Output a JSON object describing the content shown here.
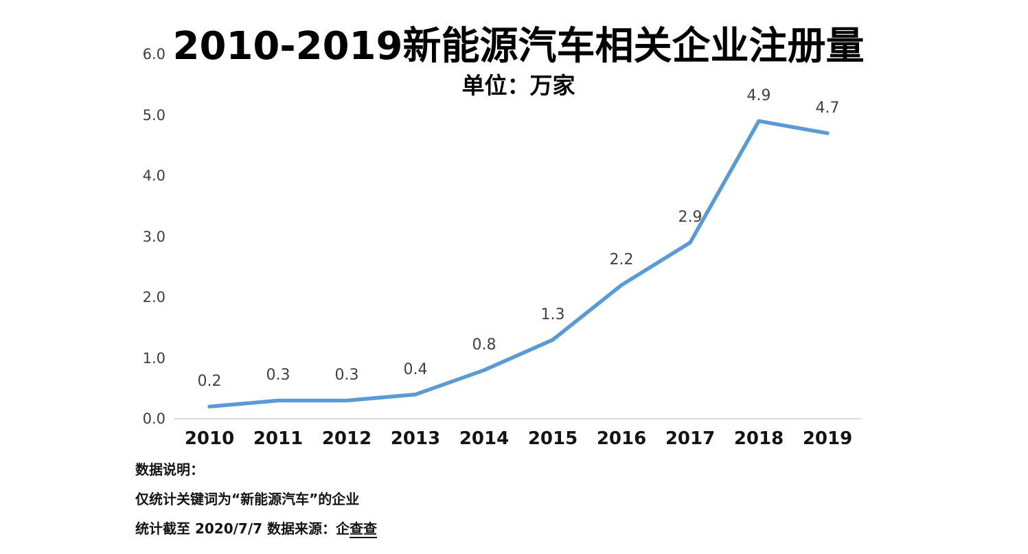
{
  "chart": {
    "title": "2010-2019新能源汽车相关企业注册量",
    "subtitle": "单位：万家",
    "line_color": "#5b9bd5",
    "axis_color": "#d9d9d9",
    "data_label_color": "#404040",
    "background": "#ffffff"
  },
  "chart_data": {
    "type": "line",
    "title": "2010-2019新能源汽车相关企业注册量",
    "subtitle": "单位：万家",
    "unit": "万家",
    "categories": [
      "2010",
      "2011",
      "2012",
      "2013",
      "2014",
      "2015",
      "2016",
      "2017",
      "2018",
      "2019"
    ],
    "values": [
      0.2,
      0.3,
      0.3,
      0.4,
      0.8,
      1.3,
      2.2,
      2.9,
      4.9,
      4.7
    ],
    "labels": [
      "0.2",
      "0.3",
      "0.3",
      "0.4",
      "0.8",
      "1.3",
      "2.2",
      "2.9",
      "4.9",
      "4.7"
    ],
    "y_ticks": [
      "6.0",
      "5.0",
      "4.0",
      "3.0",
      "2.0",
      "1.0",
      "0.0"
    ],
    "ylim": [
      0,
      6
    ],
    "xlabel": "",
    "ylabel": "",
    "grid": false,
    "legend": "none",
    "marker": "none"
  },
  "footer": {
    "line1": "数据说明：",
    "line2": "仅统计关键词为“新能源汽车”的企业",
    "line3_prefix": "统计截至 2020/7/7  数据来源：企",
    "line3_underlined": "查查"
  }
}
